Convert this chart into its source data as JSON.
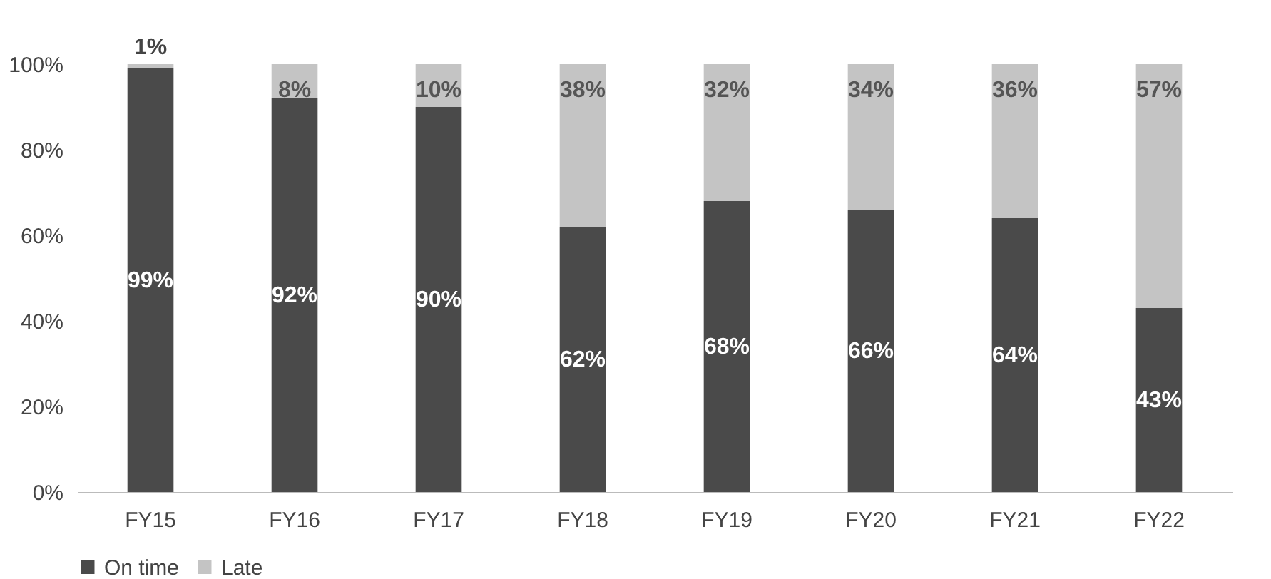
{
  "chart_data": {
    "type": "bar",
    "stacked": true,
    "categories": [
      "FY15",
      "FY16",
      "FY17",
      "FY18",
      "FY19",
      "FY20",
      "FY21",
      "FY22"
    ],
    "series": [
      {
        "name": "On time",
        "color": "#4a4a4a",
        "values": [
          99,
          92,
          90,
          62,
          68,
          66,
          64,
          43
        ],
        "value_labels": [
          "99%",
          "92%",
          "90%",
          "62%",
          "68%",
          "66%",
          "64%",
          "43%"
        ]
      },
      {
        "name": "Late",
        "color": "#c4c4c4",
        "values": [
          1,
          8,
          10,
          38,
          32,
          34,
          36,
          57
        ],
        "value_labels": [
          "1%",
          "8%",
          "10%",
          "38%",
          "32%",
          "34%",
          "36%",
          "57%"
        ]
      }
    ],
    "ylim": [
      0,
      100
    ],
    "yticks": [
      {
        "value": 0,
        "label": "0%"
      },
      {
        "value": 20,
        "label": "20%"
      },
      {
        "value": 40,
        "label": "40%"
      },
      {
        "value": 60,
        "label": "60%"
      },
      {
        "value": 80,
        "label": "80%"
      },
      {
        "value": 100,
        "label": "100%"
      }
    ],
    "legend": "bottom"
  }
}
